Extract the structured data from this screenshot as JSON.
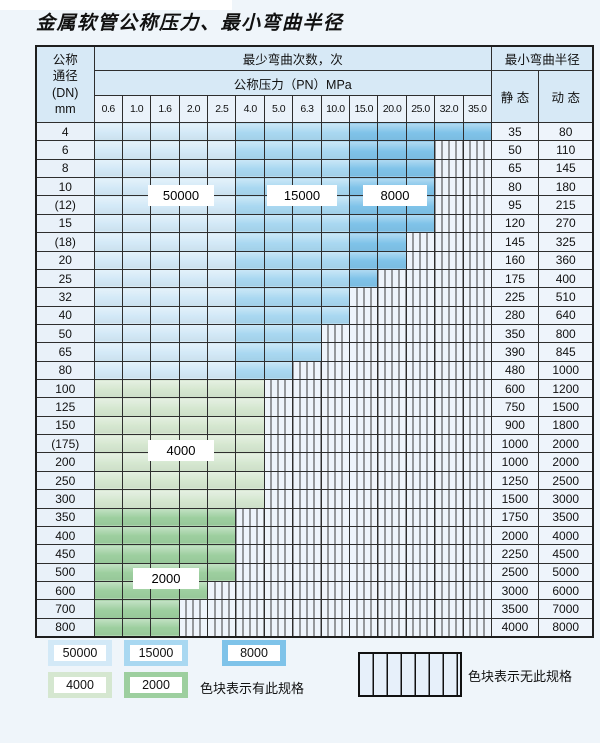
{
  "title": "金属软管公称压力、最小弯曲半径",
  "header": {
    "dn_lines": [
      "公称",
      "通径",
      "(DN)",
      "mm"
    ],
    "bend_cycles_label": "最少弯曲次数，次",
    "pressure_label": "公称压力（PN）MPa",
    "radius_label": "最小弯曲半径",
    "static_label": "静 态",
    "dynamic_label": "动 态"
  },
  "table_overlays": [
    "50000",
    "15000",
    "8000",
    "4000",
    "2000"
  ],
  "legend": {
    "swatches": [
      {
        "value": "50000"
      },
      {
        "value": "15000"
      },
      {
        "value": "8000"
      },
      {
        "value": "4000"
      },
      {
        "value": "2000"
      }
    ],
    "has_spec_label": "色块表示有此规格",
    "no_spec_label": "色块表示无此规格"
  },
  "colors": {
    "50000": "#d3e9f7",
    "15000": "#a9d8f1",
    "8000": "#7fc3e9",
    "4000": "#d5e7d0",
    "2000": "#9dcf9f",
    "hatch_bg": "#eef4fb",
    "hatch_line": "#3c3c3c",
    "header_blue": "#d7e9f6"
  },
  "chart_data": {
    "type": "table",
    "title": "金属软管公称压力、最小弯曲半径",
    "columns_pressure_MPa": [
      "0.6",
      "1.0",
      "1.6",
      "2.0",
      "2.5",
      "4.0",
      "5.0",
      "6.3",
      "10.0",
      "15.0",
      "20.0",
      "25.0",
      "32.0",
      "35.0"
    ],
    "value_meaning": "minimum bend cycles per pressure column; null = no such specification (hatched)",
    "radius_columns": [
      "静 态",
      "动 态"
    ],
    "rows": [
      {
        "dn": "4",
        "values": [
          50000,
          50000,
          50000,
          50000,
          50000,
          15000,
          15000,
          15000,
          15000,
          8000,
          8000,
          8000,
          8000,
          8000
        ],
        "static": "35",
        "dynamic": "80"
      },
      {
        "dn": "6",
        "values": [
          50000,
          50000,
          50000,
          50000,
          50000,
          15000,
          15000,
          15000,
          15000,
          8000,
          8000,
          8000,
          null,
          null
        ],
        "static": "50",
        "dynamic": "110"
      },
      {
        "dn": "8",
        "values": [
          50000,
          50000,
          50000,
          50000,
          50000,
          15000,
          15000,
          15000,
          15000,
          8000,
          8000,
          8000,
          null,
          null
        ],
        "static": "65",
        "dynamic": "145"
      },
      {
        "dn": "10",
        "values": [
          50000,
          50000,
          50000,
          50000,
          50000,
          15000,
          15000,
          15000,
          15000,
          8000,
          8000,
          8000,
          null,
          null
        ],
        "static": "80",
        "dynamic": "180"
      },
      {
        "dn": "(12)",
        "values": [
          50000,
          50000,
          50000,
          50000,
          50000,
          15000,
          15000,
          15000,
          15000,
          8000,
          8000,
          8000,
          null,
          null
        ],
        "static": "95",
        "dynamic": "215"
      },
      {
        "dn": "15",
        "values": [
          50000,
          50000,
          50000,
          50000,
          50000,
          15000,
          15000,
          15000,
          15000,
          8000,
          8000,
          8000,
          null,
          null
        ],
        "static": "120",
        "dynamic": "270"
      },
      {
        "dn": "(18)",
        "values": [
          50000,
          50000,
          50000,
          50000,
          50000,
          15000,
          15000,
          15000,
          15000,
          8000,
          8000,
          null,
          null,
          null
        ],
        "static": "145",
        "dynamic": "325"
      },
      {
        "dn": "20",
        "values": [
          50000,
          50000,
          50000,
          50000,
          50000,
          15000,
          15000,
          15000,
          15000,
          8000,
          8000,
          null,
          null,
          null
        ],
        "static": "160",
        "dynamic": "360"
      },
      {
        "dn": "25",
        "values": [
          50000,
          50000,
          50000,
          50000,
          50000,
          15000,
          15000,
          15000,
          15000,
          8000,
          null,
          null,
          null,
          null
        ],
        "static": "175",
        "dynamic": "400"
      },
      {
        "dn": "32",
        "values": [
          50000,
          50000,
          50000,
          50000,
          50000,
          15000,
          15000,
          15000,
          15000,
          null,
          null,
          null,
          null,
          null
        ],
        "static": "225",
        "dynamic": "510"
      },
      {
        "dn": "40",
        "values": [
          50000,
          50000,
          50000,
          50000,
          50000,
          15000,
          15000,
          15000,
          15000,
          null,
          null,
          null,
          null,
          null
        ],
        "static": "280",
        "dynamic": "640"
      },
      {
        "dn": "50",
        "values": [
          50000,
          50000,
          50000,
          50000,
          50000,
          15000,
          15000,
          15000,
          null,
          null,
          null,
          null,
          null,
          null
        ],
        "static": "350",
        "dynamic": "800"
      },
      {
        "dn": "65",
        "values": [
          50000,
          50000,
          50000,
          50000,
          50000,
          15000,
          15000,
          15000,
          null,
          null,
          null,
          null,
          null,
          null
        ],
        "static": "390",
        "dynamic": "845"
      },
      {
        "dn": "80",
        "values": [
          50000,
          50000,
          50000,
          50000,
          50000,
          15000,
          15000,
          null,
          null,
          null,
          null,
          null,
          null,
          null
        ],
        "static": "480",
        "dynamic": "1000"
      },
      {
        "dn": "100",
        "values": [
          4000,
          4000,
          4000,
          4000,
          4000,
          4000,
          null,
          null,
          null,
          null,
          null,
          null,
          null,
          null
        ],
        "static": "600",
        "dynamic": "1200"
      },
      {
        "dn": "125",
        "values": [
          4000,
          4000,
          4000,
          4000,
          4000,
          4000,
          null,
          null,
          null,
          null,
          null,
          null,
          null,
          null
        ],
        "static": "750",
        "dynamic": "1500"
      },
      {
        "dn": "150",
        "values": [
          4000,
          4000,
          4000,
          4000,
          4000,
          4000,
          null,
          null,
          null,
          null,
          null,
          null,
          null,
          null
        ],
        "static": "900",
        "dynamic": "1800"
      },
      {
        "dn": "(175)",
        "values": [
          4000,
          4000,
          4000,
          4000,
          4000,
          4000,
          null,
          null,
          null,
          null,
          null,
          null,
          null,
          null
        ],
        "static": "1000",
        "dynamic": "2000"
      },
      {
        "dn": "200",
        "values": [
          4000,
          4000,
          4000,
          4000,
          4000,
          4000,
          null,
          null,
          null,
          null,
          null,
          null,
          null,
          null
        ],
        "static": "1000",
        "dynamic": "2000"
      },
      {
        "dn": "250",
        "values": [
          4000,
          4000,
          4000,
          4000,
          4000,
          4000,
          null,
          null,
          null,
          null,
          null,
          null,
          null,
          null
        ],
        "static": "1250",
        "dynamic": "2500"
      },
      {
        "dn": "300",
        "values": [
          4000,
          4000,
          4000,
          4000,
          4000,
          4000,
          null,
          null,
          null,
          null,
          null,
          null,
          null,
          null
        ],
        "static": "1500",
        "dynamic": "3000"
      },
      {
        "dn": "350",
        "values": [
          2000,
          2000,
          2000,
          2000,
          2000,
          null,
          null,
          null,
          null,
          null,
          null,
          null,
          null,
          null
        ],
        "static": "1750",
        "dynamic": "3500"
      },
      {
        "dn": "400",
        "values": [
          2000,
          2000,
          2000,
          2000,
          2000,
          null,
          null,
          null,
          null,
          null,
          null,
          null,
          null,
          null
        ],
        "static": "2000",
        "dynamic": "4000"
      },
      {
        "dn": "450",
        "values": [
          2000,
          2000,
          2000,
          2000,
          2000,
          null,
          null,
          null,
          null,
          null,
          null,
          null,
          null,
          null
        ],
        "static": "2250",
        "dynamic": "4500"
      },
      {
        "dn": "500",
        "values": [
          2000,
          2000,
          2000,
          2000,
          2000,
          null,
          null,
          null,
          null,
          null,
          null,
          null,
          null,
          null
        ],
        "static": "2500",
        "dynamic": "5000"
      },
      {
        "dn": "600",
        "values": [
          2000,
          2000,
          2000,
          2000,
          null,
          null,
          null,
          null,
          null,
          null,
          null,
          null,
          null,
          null
        ],
        "static": "3000",
        "dynamic": "6000"
      },
      {
        "dn": "700",
        "values": [
          2000,
          2000,
          2000,
          null,
          null,
          null,
          null,
          null,
          null,
          null,
          null,
          null,
          null,
          null
        ],
        "static": "3500",
        "dynamic": "7000"
      },
      {
        "dn": "800",
        "values": [
          2000,
          2000,
          2000,
          null,
          null,
          null,
          null,
          null,
          null,
          null,
          null,
          null,
          null,
          null
        ],
        "static": "4000",
        "dynamic": "8000"
      }
    ]
  }
}
